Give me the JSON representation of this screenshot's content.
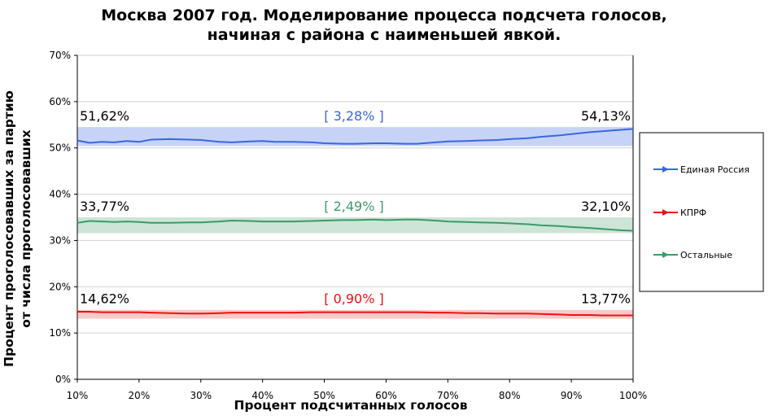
{
  "chart_data": {
    "type": "line",
    "title_line1": "Москва 2007 год. Моделирование процесса подсчета голосов,",
    "title_line2": "начиная с района с наименьшей явкой.",
    "xlabel": "Процент подсчитанных голосов",
    "ylabel_line1": "Процент проголосовавших за партию",
    "ylabel_line2": "от числа проголосовавших",
    "xlim": [
      10,
      100
    ],
    "ylim": [
      0,
      70
    ],
    "x_ticks": [
      "10%",
      "20%",
      "30%",
      "40%",
      "50%",
      "60%",
      "70%",
      "80%",
      "90%",
      "100%"
    ],
    "y_ticks": [
      "0%",
      "10%",
      "20%",
      "30%",
      "40%",
      "50%",
      "60%",
      "70%"
    ],
    "grid": "horizontal",
    "legend_position": "right",
    "x": [
      10,
      12,
      14,
      16,
      18,
      20,
      22,
      25,
      28,
      30,
      33,
      35,
      38,
      40,
      42,
      45,
      48,
      50,
      53,
      55,
      58,
      60,
      63,
      65,
      68,
      70,
      73,
      75,
      78,
      80,
      83,
      85,
      88,
      90,
      93,
      95,
      98,
      100
    ],
    "series": [
      {
        "name": "Единая Россия",
        "color": "#3a66e0",
        "band_color": "#c6d3f7",
        "band": [
          50.4,
          54.5
        ],
        "start_label": "51,62%",
        "end_label": "54,13%",
        "range_label": "[ 3,28% ]",
        "values": [
          51.6,
          51.1,
          51.3,
          51.2,
          51.5,
          51.3,
          51.8,
          51.9,
          51.8,
          51.7,
          51.3,
          51.2,
          51.4,
          51.5,
          51.3,
          51.3,
          51.2,
          51.0,
          50.9,
          50.9,
          51.0,
          51.0,
          50.9,
          50.9,
          51.2,
          51.4,
          51.5,
          51.6,
          51.7,
          51.9,
          52.1,
          52.4,
          52.7,
          53.0,
          53.4,
          53.6,
          53.9,
          54.1
        ]
      },
      {
        "name": "КПРФ",
        "color": "#ee1111",
        "band_color": "#f9c9c9",
        "band": [
          13.1,
          15.0
        ],
        "start_label": "14,62%",
        "end_label": "13,77%",
        "range_label": "[ 0,90% ]",
        "values": [
          14.6,
          14.6,
          14.5,
          14.5,
          14.5,
          14.5,
          14.4,
          14.3,
          14.2,
          14.2,
          14.3,
          14.4,
          14.4,
          14.4,
          14.4,
          14.4,
          14.5,
          14.5,
          14.5,
          14.5,
          14.5,
          14.5,
          14.5,
          14.5,
          14.4,
          14.4,
          14.3,
          14.3,
          14.2,
          14.2,
          14.2,
          14.1,
          14.0,
          13.9,
          13.9,
          13.8,
          13.8,
          13.8
        ]
      },
      {
        "name": "Остальные",
        "color": "#3c9a6a",
        "band_color": "#cce5d6",
        "band": [
          31.6,
          35.0
        ],
        "start_label": "33,77%",
        "end_label": "32,10%",
        "range_label": "[ 2,49% ]",
        "values": [
          33.8,
          34.2,
          34.1,
          34.0,
          34.1,
          34.0,
          33.8,
          33.8,
          33.9,
          33.9,
          34.1,
          34.3,
          34.2,
          34.1,
          34.1,
          34.1,
          34.2,
          34.3,
          34.4,
          34.4,
          34.5,
          34.4,
          34.5,
          34.5,
          34.3,
          34.1,
          34.0,
          33.9,
          33.8,
          33.7,
          33.5,
          33.3,
          33.1,
          32.9,
          32.7,
          32.5,
          32.2,
          32.1
        ]
      }
    ]
  }
}
